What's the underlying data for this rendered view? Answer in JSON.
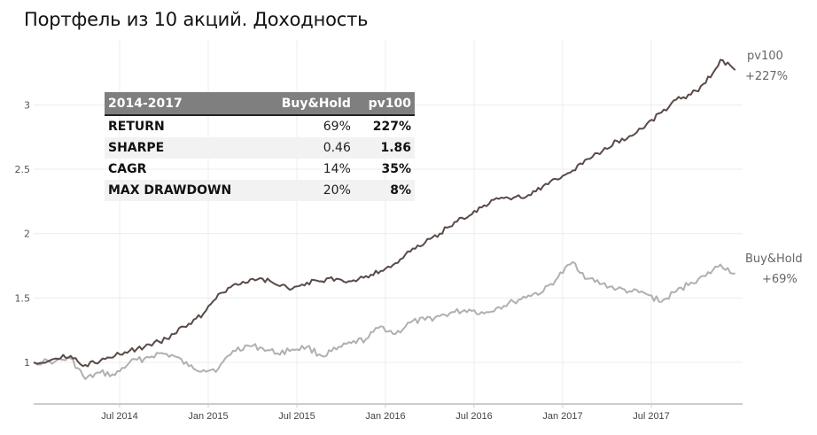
{
  "title": "Портфель из 10 акций. Доходность",
  "table": {
    "headers": [
      "2014-2017",
      "Buy&Hold",
      "pv100"
    ],
    "rows": [
      {
        "label": "RETURN",
        "buyhold": "69%",
        "pv100": "227%"
      },
      {
        "label": "SHARPE",
        "buyhold": "0.46",
        "pv100": "1.86"
      },
      {
        "label": "CAGR",
        "buyhold": "14%",
        "pv100": "35%"
      },
      {
        "label": "MAX DRAWDOWN",
        "buyhold": "20%",
        "pv100": "8%"
      }
    ]
  },
  "end_labels": {
    "pv100": {
      "name": "pv100",
      "value": "+227%"
    },
    "buyhold": {
      "name": "Buy&Hold",
      "value": "+69%"
    }
  },
  "colors": {
    "pv100": "#5a4a48",
    "buyhold": "#b0b0b0",
    "grid": "#ececec",
    "axis": "#cccccc",
    "table_header": "#7f7f7f"
  },
  "chart_data": {
    "type": "line",
    "title": "Портфель из 10 акций. Доходность",
    "xlabel": "",
    "ylabel": "",
    "ylim": [
      0.65,
      3.45
    ],
    "y_ticks": [
      "1",
      "1.5",
      "2",
      "2.5",
      "3"
    ],
    "x_ticks": [
      "Jul 2014",
      "Jan 2015",
      "Jul 2015",
      "Jan 2016",
      "Jul 2016",
      "Jan 2017",
      "Jul 2017"
    ],
    "grid": true,
    "legend_position": "end-of-line labels",
    "x": [
      "2014-01",
      "2014-02",
      "2014-03",
      "2014-04",
      "2014-05",
      "2014-06",
      "2014-07",
      "2014-08",
      "2014-09",
      "2014-10",
      "2014-11",
      "2014-12",
      "2015-01",
      "2015-02",
      "2015-03",
      "2015-04",
      "2015-05",
      "2015-06",
      "2015-07",
      "2015-08",
      "2015-09",
      "2015-10",
      "2015-11",
      "2015-12",
      "2016-01",
      "2016-02",
      "2016-03",
      "2016-04",
      "2016-05",
      "2016-06",
      "2016-07",
      "2016-08",
      "2016-09",
      "2016-10",
      "2016-11",
      "2016-12",
      "2017-01",
      "2017-02",
      "2017-03",
      "2017-04",
      "2017-05",
      "2017-06",
      "2017-07",
      "2017-08",
      "2017-09",
      "2017-10",
      "2017-11",
      "2017-12"
    ],
    "series": [
      {
        "name": "pv100",
        "values": [
          1.0,
          1.03,
          1.05,
          0.98,
          1.01,
          1.05,
          1.09,
          1.12,
          1.16,
          1.22,
          1.3,
          1.38,
          1.53,
          1.6,
          1.62,
          1.65,
          1.6,
          1.57,
          1.62,
          1.63,
          1.65,
          1.63,
          1.67,
          1.71,
          1.77,
          1.86,
          1.93,
          2.0,
          2.09,
          2.14,
          2.22,
          2.27,
          2.28,
          2.3,
          2.37,
          2.42,
          2.49,
          2.58,
          2.64,
          2.72,
          2.76,
          2.85,
          2.94,
          3.04,
          3.08,
          3.17,
          3.35,
          3.27
        ]
      },
      {
        "name": "Buy&Hold",
        "values": [
          1.0,
          1.01,
          1.03,
          0.87,
          0.92,
          0.9,
          1.0,
          1.03,
          1.07,
          1.05,
          0.97,
          0.94,
          0.95,
          1.09,
          1.13,
          1.11,
          1.07,
          1.1,
          1.12,
          1.05,
          1.1,
          1.15,
          1.18,
          1.28,
          1.22,
          1.31,
          1.33,
          1.36,
          1.39,
          1.41,
          1.38,
          1.43,
          1.47,
          1.52,
          1.55,
          1.66,
          1.78,
          1.65,
          1.61,
          1.57,
          1.55,
          1.53,
          1.47,
          1.55,
          1.62,
          1.67,
          1.76,
          1.69
        ]
      }
    ]
  }
}
